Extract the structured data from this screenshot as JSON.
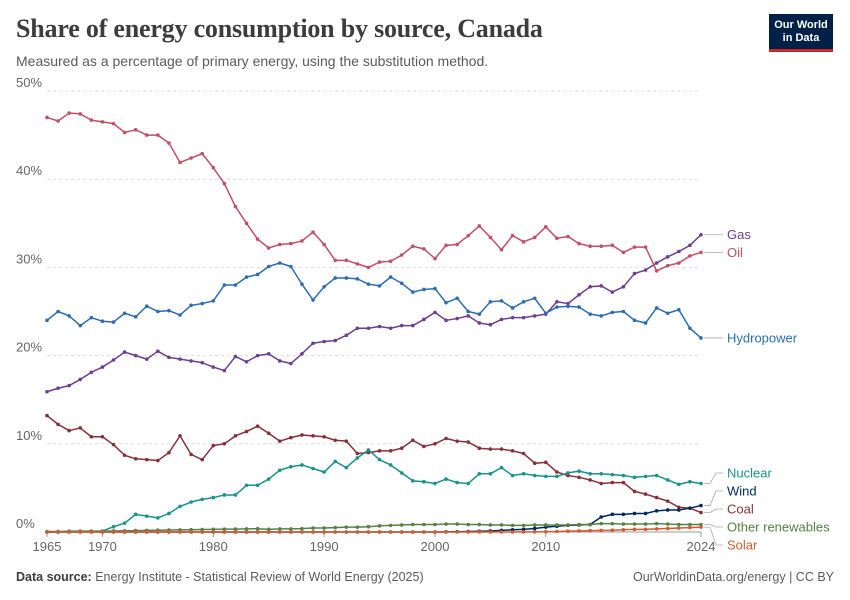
{
  "header": {
    "title": "Share of energy consumption by source, Canada",
    "subtitle": "Measured as a percentage of primary energy, using the substitution method.",
    "logo_line1": "Our World",
    "logo_line2": "in Data"
  },
  "footer": {
    "source_label": "Data source:",
    "source_text": "Energy Institute - Statistical Review of World Energy (2025)",
    "right_text": "OurWorldinData.org/energy | CC BY"
  },
  "chart_data": {
    "type": "line",
    "xlim": [
      1965,
      2024
    ],
    "ylim": [
      0,
      50
    ],
    "y_ticks": [
      {
        "value": 0,
        "label": "0%"
      },
      {
        "value": 10,
        "label": "10%"
      },
      {
        "value": 20,
        "label": "20%"
      },
      {
        "value": 30,
        "label": "30%"
      },
      {
        "value": 40,
        "label": "40%"
      },
      {
        "value": 50,
        "label": "50%"
      }
    ],
    "x_ticks": [
      {
        "value": 1965,
        "label": "1965"
      },
      {
        "value": 1970,
        "label": "1970"
      },
      {
        "value": 1980,
        "label": "1980"
      },
      {
        "value": 1990,
        "label": "1990"
      },
      {
        "value": 2000,
        "label": "2000"
      },
      {
        "value": 2010,
        "label": "2010"
      },
      {
        "value": 2024,
        "label": "2024"
      }
    ],
    "grid": "horizontal dashed",
    "legend": "right-side labels",
    "x": [
      1965,
      1966,
      1967,
      1968,
      1969,
      1970,
      1971,
      1972,
      1973,
      1974,
      1975,
      1976,
      1977,
      1978,
      1979,
      1980,
      1981,
      1982,
      1983,
      1984,
      1985,
      1986,
      1987,
      1988,
      1989,
      1990,
      1991,
      1992,
      1993,
      1994,
      1995,
      1996,
      1997,
      1998,
      1999,
      2000,
      2001,
      2002,
      2003,
      2004,
      2005,
      2006,
      2007,
      2008,
      2009,
      2010,
      2011,
      2012,
      2013,
      2014,
      2015,
      2016,
      2017,
      2018,
      2019,
      2020,
      2021,
      2022,
      2023,
      2024
    ],
    "series": [
      {
        "name": "Gas",
        "color": "#6d3e91",
        "label_color": "#6d3e91",
        "values": [
          15.9,
          16.3,
          16.6,
          17.3,
          18.1,
          18.7,
          19.5,
          20.4,
          20.0,
          19.6,
          20.5,
          19.8,
          19.6,
          19.4,
          19.2,
          18.7,
          18.3,
          19.9,
          19.3,
          20.0,
          20.2,
          19.4,
          19.1,
          20.2,
          21.4,
          21.6,
          21.7,
          22.3,
          23.1,
          23.1,
          23.3,
          23.1,
          23.4,
          23.4,
          24.1,
          24.9,
          24.0,
          24.2,
          24.5,
          23.7,
          23.5,
          24.1,
          24.3,
          24.3,
          24.5,
          24.7,
          26.1,
          25.9,
          26.9,
          27.8,
          27.9,
          27.2,
          27.8,
          29.3,
          29.7,
          30.5,
          31.2,
          31.8,
          32.5,
          33.7
        ]
      },
      {
        "name": "Oil",
        "color": "#c15065",
        "label_color": "#c15065",
        "values": [
          47.0,
          46.6,
          47.5,
          47.4,
          46.7,
          46.5,
          46.3,
          45.3,
          45.6,
          45.0,
          45.0,
          44.1,
          41.9,
          42.4,
          42.9,
          41.3,
          39.5,
          36.9,
          35.0,
          33.2,
          32.2,
          32.6,
          32.7,
          33.0,
          34.0,
          32.6,
          30.8,
          30.8,
          30.4,
          30.0,
          30.6,
          30.7,
          31.4,
          32.4,
          32.1,
          31.0,
          32.5,
          32.6,
          33.6,
          34.7,
          33.4,
          32.0,
          33.6,
          32.9,
          33.4,
          34.6,
          33.3,
          33.5,
          32.7,
          32.4,
          32.4,
          32.5,
          31.7,
          32.3,
          32.3,
          29.6,
          30.2,
          30.5,
          31.3,
          31.7
        ]
      },
      {
        "name": "Hydropower",
        "color": "#2c6db1",
        "label_color": "#2c6db1",
        "values": [
          24.0,
          25.0,
          24.5,
          23.4,
          24.3,
          23.9,
          23.8,
          24.8,
          24.4,
          25.6,
          25.0,
          25.1,
          24.6,
          25.7,
          25.9,
          26.2,
          28.0,
          28.0,
          28.9,
          29.2,
          30.1,
          30.5,
          30.1,
          28.1,
          26.3,
          27.8,
          28.8,
          28.8,
          28.7,
          28.1,
          27.9,
          28.9,
          28.2,
          27.2,
          27.5,
          27.6,
          26.0,
          26.5,
          25.0,
          24.7,
          26.1,
          26.2,
          25.4,
          26.1,
          26.5,
          24.8,
          25.5,
          25.6,
          25.5,
          24.7,
          24.5,
          24.9,
          25.0,
          24.0,
          23.7,
          25.4,
          24.8,
          25.2,
          23.1,
          22.0
        ]
      },
      {
        "name": "Coal",
        "color": "#883039",
        "label_color": "#883039",
        "values": [
          13.2,
          12.2,
          11.5,
          11.8,
          10.8,
          10.8,
          9.9,
          8.7,
          8.3,
          8.2,
          8.1,
          9.0,
          10.9,
          8.8,
          8.2,
          9.8,
          10.0,
          10.9,
          11.4,
          12.0,
          11.2,
          10.3,
          10.7,
          11.0,
          10.9,
          10.8,
          10.4,
          10.3,
          8.9,
          9.0,
          9.2,
          9.2,
          9.5,
          10.4,
          9.7,
          10.0,
          10.6,
          10.3,
          10.2,
          9.5,
          9.4,
          9.4,
          9.2,
          8.9,
          7.8,
          7.9,
          6.8,
          6.4,
          6.2,
          5.9,
          5.5,
          5.6,
          5.6,
          4.6,
          4.3,
          3.9,
          3.5,
          2.8,
          2.7,
          2.2
        ]
      },
      {
        "name": "Nuclear",
        "color": "#17948b",
        "label_color": "#17948b",
        "values": [
          0.0,
          0.0,
          0.1,
          0.1,
          0.1,
          0.1,
          0.6,
          1.0,
          2.0,
          1.8,
          1.6,
          2.1,
          2.9,
          3.4,
          3.7,
          3.9,
          4.2,
          4.2,
          5.3,
          5.3,
          6.0,
          7.0,
          7.4,
          7.6,
          7.2,
          6.8,
          8.0,
          7.3,
          8.4,
          9.3,
          8.2,
          7.6,
          6.7,
          5.8,
          5.7,
          5.5,
          6.0,
          5.6,
          5.5,
          6.6,
          6.6,
          7.3,
          6.4,
          6.6,
          6.4,
          6.3,
          6.3,
          6.7,
          6.9,
          6.6,
          6.6,
          6.5,
          6.4,
          6.2,
          6.3,
          6.4,
          5.9,
          5.4,
          5.7,
          5.5
        ]
      },
      {
        "name": "Wind",
        "color": "#00295b",
        "label_color": "#00295b",
        "values": [
          0,
          0,
          0,
          0,
          0,
          0,
          0,
          0,
          0,
          0,
          0,
          0,
          0,
          0,
          0,
          0,
          0,
          0,
          0,
          0,
          0,
          0,
          0,
          0,
          0,
          0,
          0,
          0,
          0,
          0,
          0,
          0,
          0,
          0,
          0,
          0,
          0.02,
          0.03,
          0.05,
          0.08,
          0.12,
          0.18,
          0.25,
          0.3,
          0.4,
          0.55,
          0.65,
          0.75,
          0.8,
          0.85,
          1.7,
          2.0,
          2.0,
          2.1,
          2.1,
          2.4,
          2.5,
          2.5,
          2.7,
          3.0
        ]
      },
      {
        "name": "Other renewables",
        "color": "#578145",
        "label_color": "#578145",
        "values": [
          0.05,
          0.06,
          0.07,
          0.08,
          0.09,
          0.1,
          0.12,
          0.14,
          0.16,
          0.18,
          0.2,
          0.22,
          0.24,
          0.26,
          0.28,
          0.3,
          0.32,
          0.33,
          0.35,
          0.37,
          0.3,
          0.35,
          0.35,
          0.38,
          0.45,
          0.45,
          0.5,
          0.55,
          0.55,
          0.6,
          0.7,
          0.75,
          0.8,
          0.85,
          0.85,
          0.85,
          0.9,
          0.9,
          0.85,
          0.85,
          0.8,
          0.8,
          0.75,
          0.75,
          0.8,
          0.8,
          0.8,
          0.8,
          0.85,
          0.85,
          0.95,
          0.95,
          0.9,
          0.9,
          0.9,
          0.95,
          0.9,
          0.85,
          0.85,
          0.85
        ]
      },
      {
        "name": "Solar",
        "color": "#d35c31",
        "label_color": "#d35c31",
        "values": [
          0,
          0,
          0,
          0,
          0,
          0,
          0,
          0,
          0,
          0,
          0,
          0,
          0,
          0,
          0,
          0,
          0,
          0,
          0,
          0,
          0,
          0,
          0,
          0,
          0,
          0,
          0,
          0,
          0,
          0,
          0,
          0,
          0,
          0,
          0,
          0,
          0,
          0,
          0,
          0,
          0,
          0,
          0,
          0.01,
          0.02,
          0.03,
          0.05,
          0.1,
          0.12,
          0.15,
          0.18,
          0.2,
          0.25,
          0.3,
          0.3,
          0.35,
          0.4,
          0.45,
          0.5,
          0.55
        ]
      }
    ]
  }
}
